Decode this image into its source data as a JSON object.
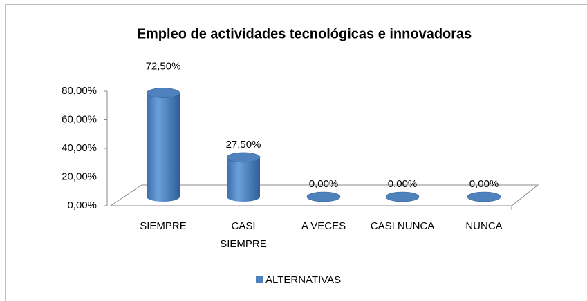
{
  "chart_data": {
    "type": "bar",
    "title": "Empleo de actividades tecnológicas e innovadoras",
    "categories": [
      "SIEMPRE",
      "CASI SIEMPRE",
      "A VECES",
      "CASI NUNCA",
      "NUNCA"
    ],
    "series": [
      {
        "name": "ALTERNATIVAS",
        "color": "#4f81bd",
        "values": [
          72.5,
          27.5,
          0,
          0,
          0
        ],
        "value_labels": [
          "72,50%",
          "27,50%",
          "0,00%",
          "0,00%",
          "0,00%"
        ]
      }
    ],
    "ylim": [
      0,
      80
    ],
    "yticks": [
      {
        "value": 0,
        "label": "0,00%"
      },
      {
        "value": 20,
        "label": "20,00%"
      },
      {
        "value": 40,
        "label": "40,00%"
      },
      {
        "value": 60,
        "label": "60,00%"
      },
      {
        "value": 80,
        "label": "80,00%"
      }
    ],
    "legend": "bottom"
  }
}
